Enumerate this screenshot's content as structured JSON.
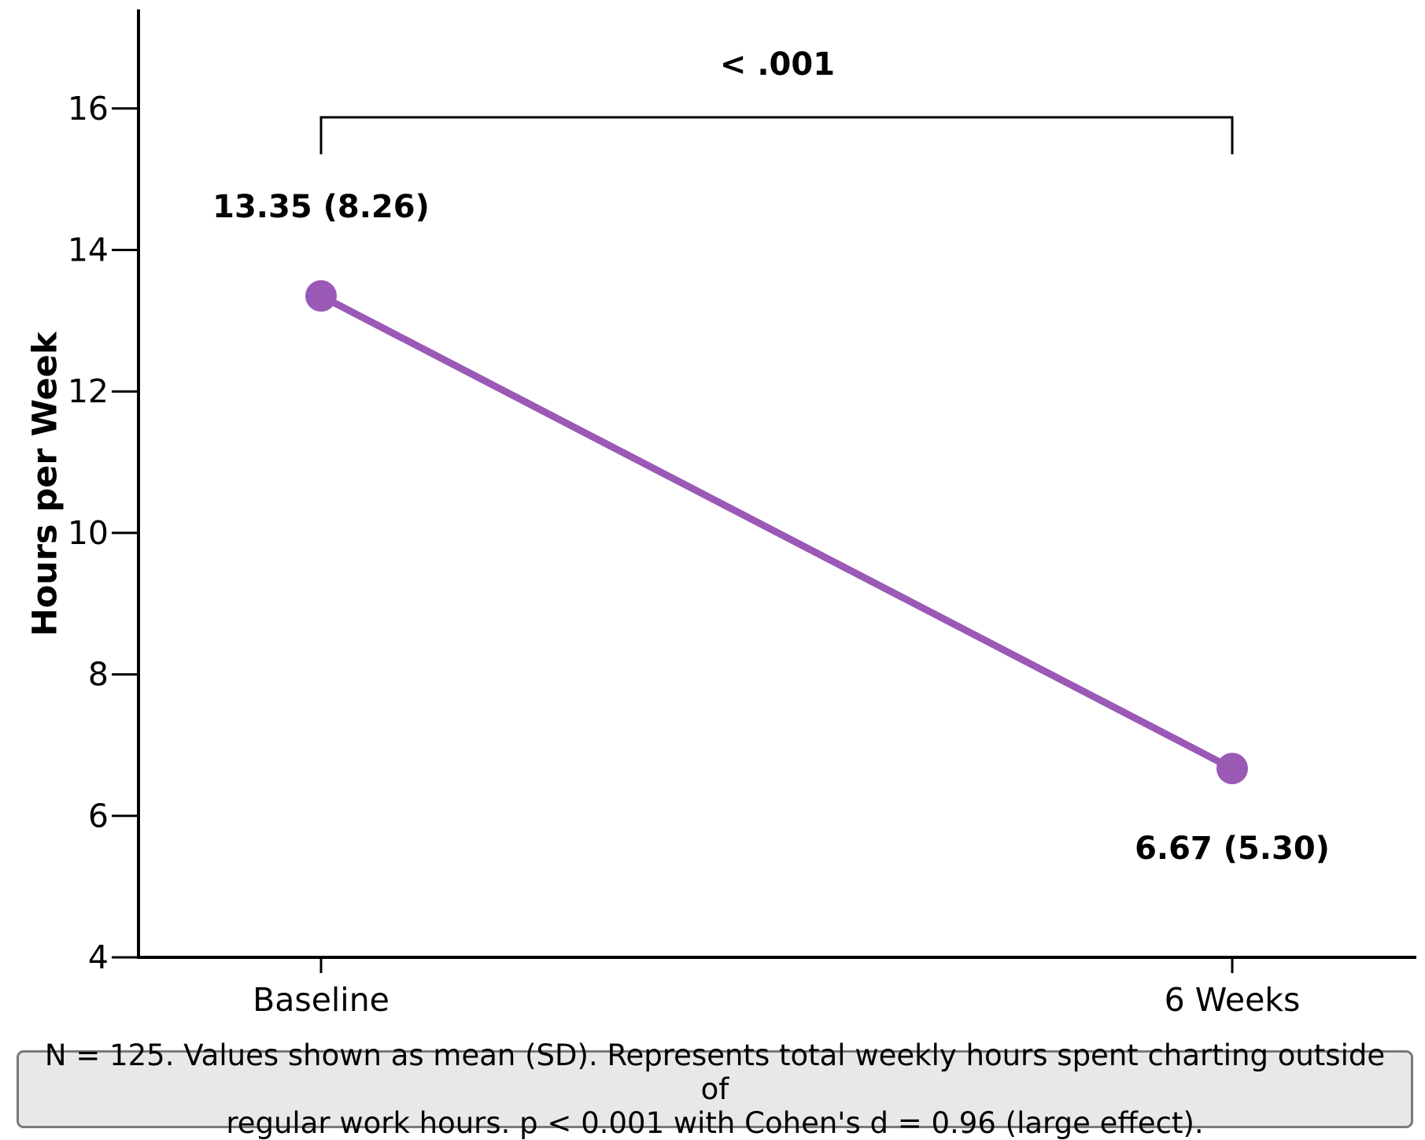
{
  "chart_data": {
    "type": "line",
    "categories": [
      "Baseline",
      "6 Weeks"
    ],
    "series": [
      {
        "values": [
          13.35,
          6.67
        ],
        "labels": [
          "13.35 (8.26)",
          "6.67 (5.30)"
        ],
        "color": "#9b59b6"
      }
    ],
    "ylabel": "Hours per Week",
    "yticks": [
      4,
      6,
      8,
      10,
      12,
      14,
      16
    ],
    "ylim": [
      4,
      17.4
    ],
    "significance": {
      "label": "< .001",
      "from": "Baseline",
      "to": "6 Weeks"
    },
    "grid": false
  },
  "note": {
    "line1": "N = 125. Values shown as mean (SD). Represents total weekly hours spent charting outside of",
    "line2": "regular work hours. p < 0.001 with Cohen's d = 0.96 (large effect)."
  }
}
